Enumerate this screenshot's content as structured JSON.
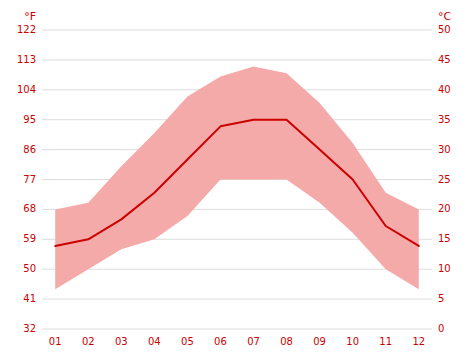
{
  "chart_data": {
    "type": "line",
    "categories": [
      "01",
      "02",
      "03",
      "04",
      "05",
      "06",
      "07",
      "08",
      "09",
      "10",
      "11",
      "12"
    ],
    "series": [
      {
        "type": "area",
        "color": "#f5aaaa",
        "high": [
          68,
          70,
          81,
          91,
          102,
          108,
          111,
          109,
          100,
          88,
          73,
          68
        ],
        "low": [
          44,
          50,
          56,
          59,
          66,
          77,
          77,
          77,
          70,
          61,
          50,
          44
        ]
      },
      {
        "type": "line",
        "color": "#cc0000",
        "values": [
          57,
          59,
          65,
          73,
          83,
          93,
          95,
          95,
          86,
          77,
          63,
          57
        ]
      }
    ],
    "color": "#cc0000",
    "ylabel": "°F",
    "y2label": "°C",
    "ylim": [
      32,
      122
    ],
    "yticks": [
      32,
      41,
      50,
      59,
      68,
      77,
      86,
      95,
      104,
      113,
      122
    ],
    "y2lim": [
      0,
      50
    ],
    "y2ticks": [
      0,
      5,
      10,
      15,
      20,
      25,
      30,
      35,
      40,
      45,
      50
    ],
    "grid": true
  }
}
